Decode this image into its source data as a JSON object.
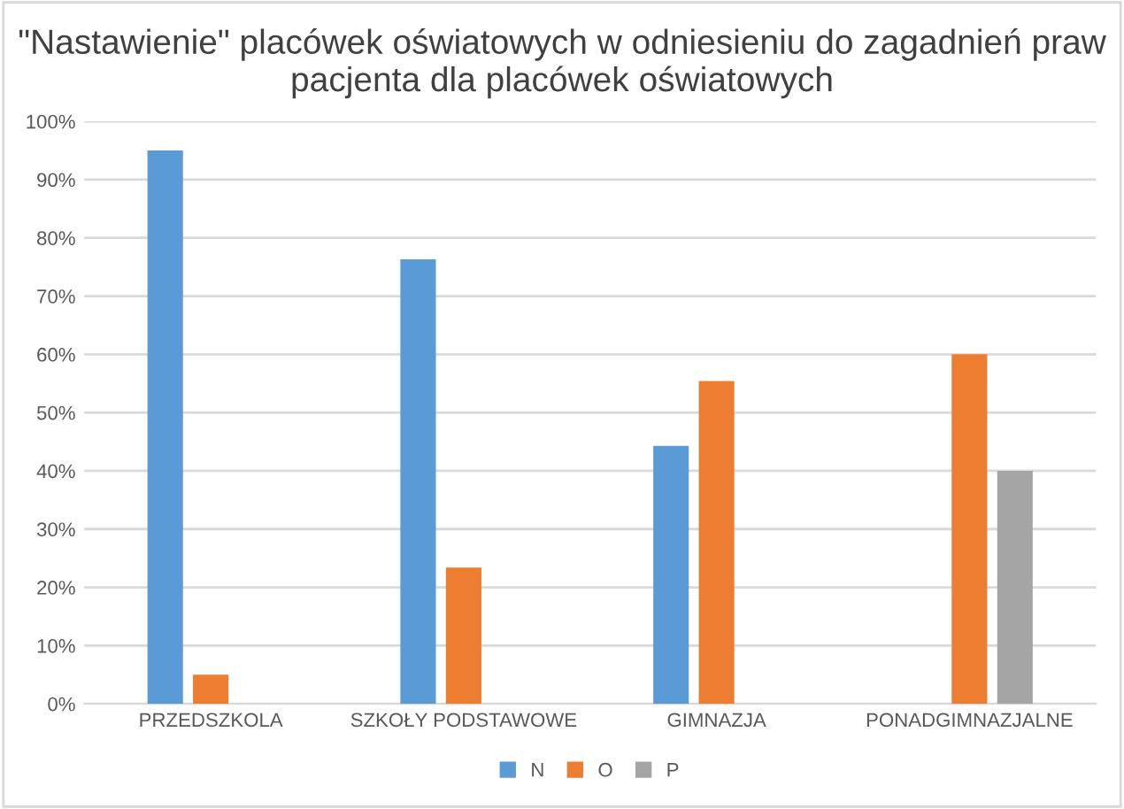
{
  "chart_data": {
    "type": "bar",
    "title": "\"Nastawienie\" placówek oświatowych w odniesieniu do zagadnień praw pacjenta dla placówek oświatowych",
    "categories": [
      "PRZEDSZKOLA",
      "SZKOŁY PODSTAWOWE",
      "GIMNAZJA",
      "PONADGIMNAZJALNE"
    ],
    "series": [
      {
        "name": "N",
        "color": "#5b9bd5",
        "values": [
          95,
          76.3,
          44.3,
          null
        ]
      },
      {
        "name": "O",
        "color": "#ed7d31",
        "values": [
          5,
          23.4,
          55.4,
          60
        ]
      },
      {
        "name": "P",
        "color": "#a5a5a5",
        "values": [
          null,
          null,
          null,
          40
        ]
      }
    ],
    "ylim": [
      0,
      100
    ],
    "yticks": [
      {
        "value": 0,
        "label": "0%"
      },
      {
        "value": 10,
        "label": "10%"
      },
      {
        "value": 20,
        "label": "20%"
      },
      {
        "value": 30,
        "label": "30%"
      },
      {
        "value": 40,
        "label": "40%"
      },
      {
        "value": 50,
        "label": "50%"
      },
      {
        "value": 60,
        "label": "60%"
      },
      {
        "value": 70,
        "label": "70%"
      },
      {
        "value": 80,
        "label": "80%"
      },
      {
        "value": 90,
        "label": "90%"
      },
      {
        "value": 100,
        "label": "100%"
      }
    ],
    "grid": "y",
    "legend": "bottom"
  }
}
